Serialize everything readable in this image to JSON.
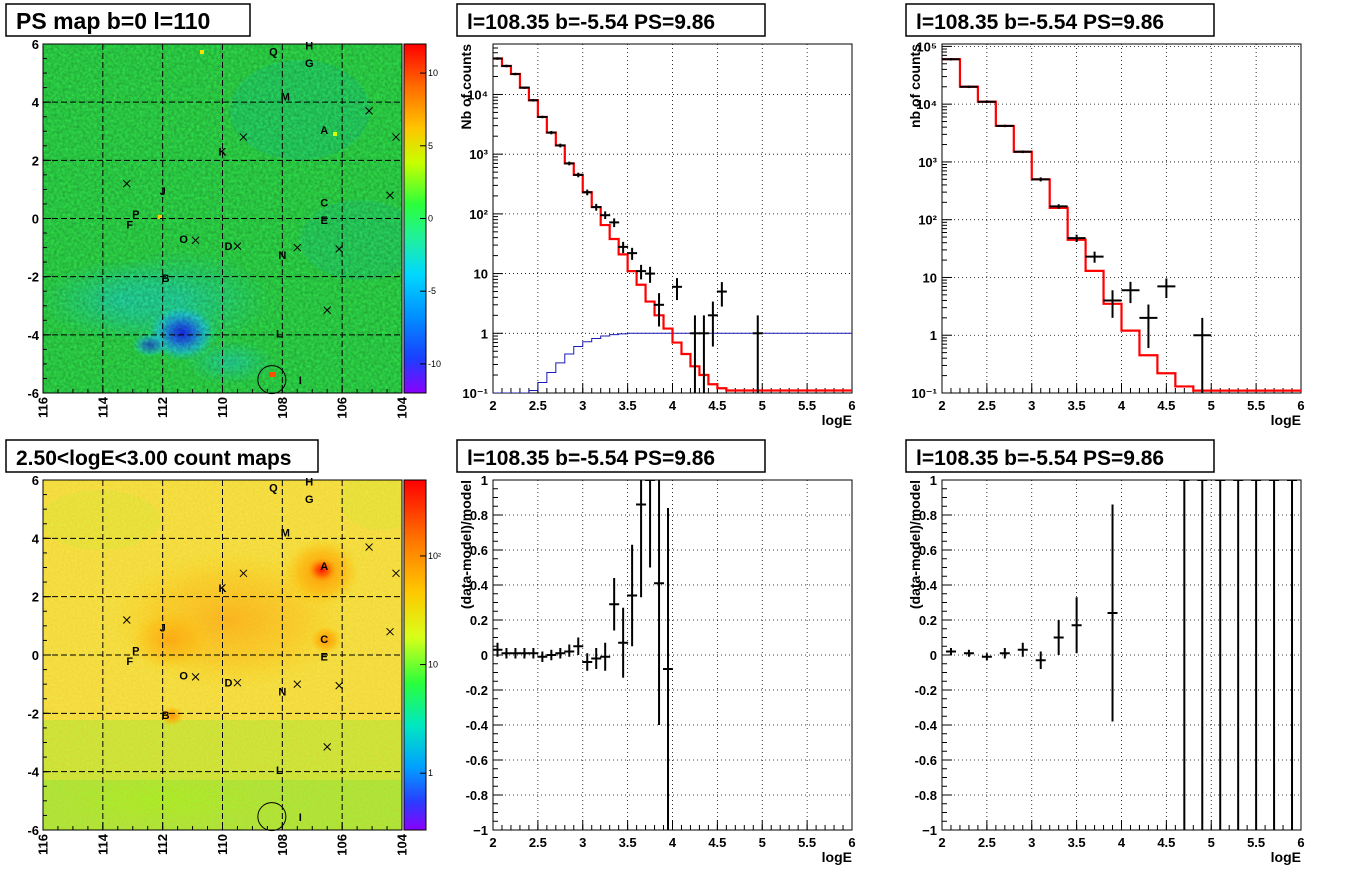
{
  "chart_data": [
    {
      "type": "heatmap",
      "title": "PS map b=0 l=110",
      "x_ticks": [
        "116",
        "114",
        "112",
        "110",
        "108",
        "106",
        "104"
      ],
      "y_ticks": [
        "-6",
        "-4",
        "-2",
        "0",
        "2",
        "4",
        "6"
      ],
      "colorbar_ticks": [
        "10",
        "5",
        "0",
        "-5",
        "-10"
      ],
      "sources": [
        {
          "label": "Q",
          "l": 108.3,
          "b": 5.75
        },
        {
          "label": "H",
          "l": 107.1,
          "b": 5.95
        },
        {
          "label": "G",
          "l": 107.1,
          "b": 5.35
        },
        {
          "label": "M",
          "l": 107.9,
          "b": 4.2
        },
        {
          "label": "A",
          "l": 106.6,
          "b": 3.05
        },
        {
          "label": "K",
          "l": 110.0,
          "b": 2.3
        },
        {
          "label": "J",
          "l": 112.0,
          "b": 0.95
        },
        {
          "label": "P",
          "l": 112.9,
          "b": 0.15
        },
        {
          "label": "F",
          "l": 113.1,
          "b": -0.2
        },
        {
          "label": "C",
          "l": 106.6,
          "b": 0.55
        },
        {
          "label": "E",
          "l": 106.6,
          "b": -0.05
        },
        {
          "label": "O",
          "l": 111.3,
          "b": -0.7
        },
        {
          "label": "D",
          "l": 109.8,
          "b": -0.95
        },
        {
          "label": "N",
          "l": 108.0,
          "b": -1.25
        },
        {
          "label": "B",
          "l": 111.9,
          "b": -2.05
        },
        {
          "label": "L",
          "l": 108.1,
          "b": -3.95
        },
        {
          "label": "I",
          "l": 107.4,
          "b": -5.55
        }
      ],
      "crosses": [
        {
          "l": 105.1,
          "b": 3.7
        },
        {
          "l": 104.2,
          "b": 2.8
        },
        {
          "l": 109.3,
          "b": 2.8
        },
        {
          "l": 113.2,
          "b": 1.2
        },
        {
          "l": 104.4,
          "b": 0.8
        },
        {
          "l": 110.9,
          "b": -0.75
        },
        {
          "l": 109.5,
          "b": -0.95
        },
        {
          "l": 107.5,
          "b": -1.0
        },
        {
          "l": 106.1,
          "b": -1.05
        },
        {
          "l": 106.5,
          "b": -3.15
        }
      ],
      "circle": {
        "l": 108.35,
        "b": -5.54
      }
    },
    {
      "type": "heatmap",
      "title": "2.50<logE<3.00 count maps",
      "x_ticks": [
        "116",
        "114",
        "112",
        "110",
        "108",
        "106",
        "104"
      ],
      "y_ticks": [
        "-6",
        "-4",
        "-2",
        "0",
        "2",
        "4",
        "6"
      ],
      "colorbar_ticks": [
        "10²",
        "10",
        "1"
      ]
    },
    {
      "type": "line",
      "title": "l=108.35 b=-5.54 PS=9.86",
      "ylabel": "Nb of counts",
      "xlabel": "logE",
      "x_ticks": [
        "2",
        "2.5",
        "3",
        "3.5",
        "4",
        "4.5",
        "5",
        "5.5",
        "6"
      ],
      "y_ticks": [
        "10⁻¹",
        "1",
        "10",
        "10²",
        "10³",
        "10⁴"
      ],
      "xlim": [
        2,
        6
      ],
      "ylim": [
        0.1,
        70000
      ],
      "yscale": "log",
      "model_red_steps": [
        [
          2.0,
          2.1,
          40000
        ],
        [
          2.1,
          2.2,
          30000
        ],
        [
          2.2,
          2.3,
          22000
        ],
        [
          2.3,
          2.4,
          13000
        ],
        [
          2.4,
          2.5,
          8000
        ],
        [
          2.5,
          2.6,
          4200
        ],
        [
          2.6,
          2.7,
          2300
        ],
        [
          2.7,
          2.8,
          1400
        ],
        [
          2.8,
          2.9,
          700
        ],
        [
          2.9,
          3.0,
          450
        ],
        [
          3.0,
          3.1,
          230
        ],
        [
          3.1,
          3.2,
          130
        ],
        [
          3.2,
          3.3,
          65
        ],
        [
          3.3,
          3.4,
          38
        ],
        [
          3.4,
          3.5,
          21
        ],
        [
          3.5,
          3.6,
          11
        ],
        [
          3.6,
          3.7,
          6.5
        ],
        [
          3.7,
          3.8,
          3.4
        ],
        [
          3.8,
          3.9,
          2.0
        ],
        [
          3.9,
          4.0,
          1.2
        ],
        [
          4.0,
          4.1,
          0.7
        ],
        [
          4.1,
          4.2,
          0.45
        ],
        [
          4.2,
          4.3,
          0.28
        ],
        [
          4.3,
          4.4,
          0.2
        ],
        [
          4.4,
          4.5,
          0.14
        ],
        [
          4.5,
          4.6,
          0.12
        ],
        [
          4.6,
          6.0,
          0.11
        ]
      ],
      "model_blue_steps": [
        [
          2.0,
          2.4,
          0.1
        ],
        [
          2.4,
          2.5,
          0.11
        ],
        [
          2.5,
          2.6,
          0.15
        ],
        [
          2.6,
          2.7,
          0.22
        ],
        [
          2.7,
          2.8,
          0.32
        ],
        [
          2.8,
          2.9,
          0.45
        ],
        [
          2.9,
          3.0,
          0.6
        ],
        [
          3.0,
          3.1,
          0.72
        ],
        [
          3.1,
          3.2,
          0.82
        ],
        [
          3.2,
          3.3,
          0.9
        ],
        [
          3.3,
          3.4,
          0.95
        ],
        [
          3.4,
          3.5,
          0.98
        ],
        [
          3.5,
          6.0,
          1.0
        ]
      ],
      "points": [
        {
          "x": 2.05,
          "y": 40000,
          "lo": 38000,
          "hi": 42000
        },
        {
          "x": 2.15,
          "y": 30000,
          "lo": 28500,
          "hi": 31500
        },
        {
          "x": 2.25,
          "y": 22000,
          "lo": 21000,
          "hi": 23000
        },
        {
          "x": 2.35,
          "y": 13000,
          "lo": 12400,
          "hi": 13600
        },
        {
          "x": 2.45,
          "y": 8000,
          "lo": 7600,
          "hi": 8400
        },
        {
          "x": 2.55,
          "y": 4200,
          "lo": 4000,
          "hi": 4400
        },
        {
          "x": 2.65,
          "y": 2300,
          "lo": 2150,
          "hi": 2450
        },
        {
          "x": 2.75,
          "y": 1400,
          "lo": 1300,
          "hi": 1500
        },
        {
          "x": 2.85,
          "y": 700,
          "lo": 650,
          "hi": 750
        },
        {
          "x": 2.95,
          "y": 450,
          "lo": 410,
          "hi": 490
        },
        {
          "x": 3.05,
          "y": 230,
          "lo": 205,
          "hi": 255
        },
        {
          "x": 3.15,
          "y": 130,
          "lo": 113,
          "hi": 147
        },
        {
          "x": 3.25,
          "y": 95,
          "lo": 82,
          "hi": 110
        },
        {
          "x": 3.35,
          "y": 72,
          "lo": 60,
          "hi": 84
        },
        {
          "x": 3.45,
          "y": 28,
          "lo": 22,
          "hi": 34
        },
        {
          "x": 3.55,
          "y": 22,
          "lo": 17,
          "hi": 27
        },
        {
          "x": 3.65,
          "y": 11,
          "lo": 8,
          "hi": 14
        },
        {
          "x": 3.75,
          "y": 10,
          "lo": 7,
          "hi": 13
        },
        {
          "x": 3.85,
          "y": 3,
          "lo": 1.3,
          "hi": 4.7
        },
        {
          "x": 4.05,
          "y": 6,
          "lo": 3.6,
          "hi": 8.4
        },
        {
          "x": 4.25,
          "y": 1,
          "lo": 0.1,
          "hi": 2
        },
        {
          "x": 4.35,
          "y": 1,
          "lo": 0.1,
          "hi": 2
        },
        {
          "x": 4.45,
          "y": 2,
          "lo": 0.6,
          "hi": 3.4
        },
        {
          "x": 4.55,
          "y": 5,
          "lo": 2.8,
          "hi": 7.2
        },
        {
          "x": 4.95,
          "y": 1,
          "lo": 0.1,
          "hi": 2
        }
      ]
    },
    {
      "type": "line",
      "title": "l=108.35 b=-5.54 PS=9.86",
      "ylabel": "nb of counts",
      "xlabel": "logE",
      "x_ticks": [
        "2",
        "2.5",
        "3",
        "3.5",
        "4",
        "4.5",
        "5",
        "5.5",
        "6"
      ],
      "y_ticks": [
        "10⁻¹",
        "1",
        "10",
        "10²",
        "10³",
        "10⁴",
        "10⁵"
      ],
      "xlim": [
        2,
        6
      ],
      "ylim": [
        0.1,
        110000
      ],
      "yscale": "log",
      "model_red_steps": [
        [
          2.0,
          2.2,
          60000
        ],
        [
          2.2,
          2.4,
          20000
        ],
        [
          2.4,
          2.6,
          11000
        ],
        [
          2.6,
          2.8,
          4200
        ],
        [
          2.8,
          3.0,
          1500
        ],
        [
          3.0,
          3.2,
          500
        ],
        [
          3.2,
          3.4,
          160
        ],
        [
          3.4,
          3.6,
          45
        ],
        [
          3.6,
          3.8,
          13
        ],
        [
          3.8,
          4.0,
          3.5
        ],
        [
          4.0,
          4.2,
          1.2
        ],
        [
          4.2,
          4.4,
          0.45
        ],
        [
          4.4,
          4.6,
          0.22
        ],
        [
          4.6,
          4.8,
          0.13
        ],
        [
          4.8,
          6.0,
          0.11
        ]
      ],
      "points": [
        {
          "x": 2.1,
          "y": 60000,
          "lo": 57000,
          "hi": 63000
        },
        {
          "x": 2.3,
          "y": 20000,
          "lo": 19000,
          "hi": 21000
        },
        {
          "x": 2.5,
          "y": 11000,
          "lo": 10500,
          "hi": 11500
        },
        {
          "x": 2.7,
          "y": 4200,
          "lo": 4000,
          "hi": 4400
        },
        {
          "x": 2.9,
          "y": 1500,
          "lo": 1420,
          "hi": 1580
        },
        {
          "x": 3.1,
          "y": 500,
          "lo": 460,
          "hi": 540
        },
        {
          "x": 3.3,
          "y": 170,
          "lo": 155,
          "hi": 185
        },
        {
          "x": 3.5,
          "y": 48,
          "lo": 41,
          "hi": 55
        },
        {
          "x": 3.7,
          "y": 23,
          "lo": 18,
          "hi": 28
        },
        {
          "x": 3.9,
          "y": 4,
          "lo": 2,
          "hi": 6
        },
        {
          "x": 4.1,
          "y": 6,
          "lo": 3.6,
          "hi": 8.4
        },
        {
          "x": 4.3,
          "y": 2,
          "lo": 0.6,
          "hi": 3.4
        },
        {
          "x": 4.5,
          "y": 7,
          "lo": 4.4,
          "hi": 9.6
        },
        {
          "x": 4.9,
          "y": 1,
          "lo": 0.1,
          "hi": 2
        }
      ]
    },
    {
      "type": "scatter",
      "title": "l=108.35 b=-5.54 PS=9.86",
      "ylabel": "(data-model)/model",
      "xlabel": "logE",
      "x_ticks": [
        "2",
        "2.5",
        "3",
        "3.5",
        "4",
        "4.5",
        "5",
        "5.5",
        "6"
      ],
      "y_ticks": [
        "1",
        "0.8",
        "0.6",
        "0.4",
        "0.2",
        "0",
        "-0.2",
        "-0.4",
        "-0.6",
        "-0.8",
        "−1"
      ],
      "xlim": [
        2,
        6
      ],
      "ylim": [
        -1,
        1
      ],
      "points": [
        {
          "x": 2.05,
          "y": 0.03,
          "lo": -0.01,
          "hi": 0.07
        },
        {
          "x": 2.15,
          "y": 0.01,
          "lo": -0.02,
          "hi": 0.04
        },
        {
          "x": 2.25,
          "y": 0.01,
          "lo": -0.02,
          "hi": 0.04
        },
        {
          "x": 2.35,
          "y": 0.01,
          "lo": -0.02,
          "hi": 0.04
        },
        {
          "x": 2.45,
          "y": 0.01,
          "lo": -0.02,
          "hi": 0.04
        },
        {
          "x": 2.55,
          "y": -0.01,
          "lo": -0.04,
          "hi": 0.02
        },
        {
          "x": 2.65,
          "y": 0.0,
          "lo": -0.03,
          "hi": 0.03
        },
        {
          "x": 2.75,
          "y": 0.01,
          "lo": -0.02,
          "hi": 0.04
        },
        {
          "x": 2.85,
          "y": 0.02,
          "lo": -0.01,
          "hi": 0.06
        },
        {
          "x": 2.95,
          "y": 0.05,
          "lo": 0.0,
          "hi": 0.1
        },
        {
          "x": 3.05,
          "y": -0.04,
          "lo": -0.09,
          "hi": 0.01
        },
        {
          "x": 3.15,
          "y": -0.02,
          "lo": -0.08,
          "hi": 0.04
        },
        {
          "x": 3.25,
          "y": -0.01,
          "lo": -0.09,
          "hi": 0.07
        },
        {
          "x": 3.35,
          "y": 0.29,
          "lo": 0.14,
          "hi": 0.44
        },
        {
          "x": 3.45,
          "y": 0.07,
          "lo": -0.13,
          "hi": 0.27
        },
        {
          "x": 3.55,
          "y": 0.34,
          "lo": 0.05,
          "hi": 0.63
        },
        {
          "x": 3.65,
          "y": 0.86,
          "lo": 0.33,
          "hi": 1.0
        },
        {
          "x": 3.75,
          "y": 1.0,
          "lo": 0.5,
          "hi": 1.0
        },
        {
          "x": 3.85,
          "y": 0.41,
          "lo": -0.4,
          "hi": 1.0
        },
        {
          "x": 3.95,
          "y": -0.08,
          "lo": -1.0,
          "hi": 0.84
        }
      ]
    },
    {
      "type": "scatter",
      "title": "l=108.35 b=-5.54 PS=9.86",
      "ylabel": "(data-model)/model",
      "xlabel": "logE",
      "x_ticks": [
        "2",
        "2.5",
        "3",
        "3.5",
        "4",
        "4.5",
        "5",
        "5.5",
        "6"
      ],
      "y_ticks": [
        "1",
        "0.8",
        "0.6",
        "0.4",
        "0.2",
        "0",
        "-0.2",
        "-0.4",
        "-0.6",
        "-0.8",
        "−1"
      ],
      "xlim": [
        2,
        6
      ],
      "ylim": [
        -1,
        1
      ],
      "points": [
        {
          "x": 2.1,
          "y": 0.02,
          "lo": 0.0,
          "hi": 0.04
        },
        {
          "x": 2.3,
          "y": 0.01,
          "lo": -0.01,
          "hi": 0.03
        },
        {
          "x": 2.5,
          "y": -0.01,
          "lo": -0.03,
          "hi": 0.01
        },
        {
          "x": 2.7,
          "y": 0.01,
          "lo": -0.02,
          "hi": 0.04
        },
        {
          "x": 2.9,
          "y": 0.03,
          "lo": -0.01,
          "hi": 0.07
        },
        {
          "x": 3.1,
          "y": -0.03,
          "lo": -0.08,
          "hi": 0.02
        },
        {
          "x": 3.3,
          "y": 0.1,
          "lo": 0.0,
          "hi": 0.2
        },
        {
          "x": 3.5,
          "y": 0.17,
          "lo": 0.01,
          "hi": 0.33
        },
        {
          "x": 3.9,
          "y": 0.24,
          "lo": -0.38,
          "hi": 0.86
        },
        {
          "x": 4.7,
          "y": 1.0,
          "lo": -1.0,
          "hi": 1.0
        },
        {
          "x": 4.9,
          "y": 1.0,
          "lo": -1.0,
          "hi": 1.0
        },
        {
          "x": 5.1,
          "y": 1.0,
          "lo": -1.0,
          "hi": 1.0
        },
        {
          "x": 5.3,
          "y": 1.0,
          "lo": -1.0,
          "hi": 1.0
        },
        {
          "x": 5.5,
          "y": 1.0,
          "lo": -1.0,
          "hi": 1.0
        },
        {
          "x": 5.7,
          "y": 1.0,
          "lo": -1.0,
          "hi": 1.0
        },
        {
          "x": 5.9,
          "y": 1.0,
          "lo": -1.0,
          "hi": 1.0
        }
      ]
    }
  ]
}
